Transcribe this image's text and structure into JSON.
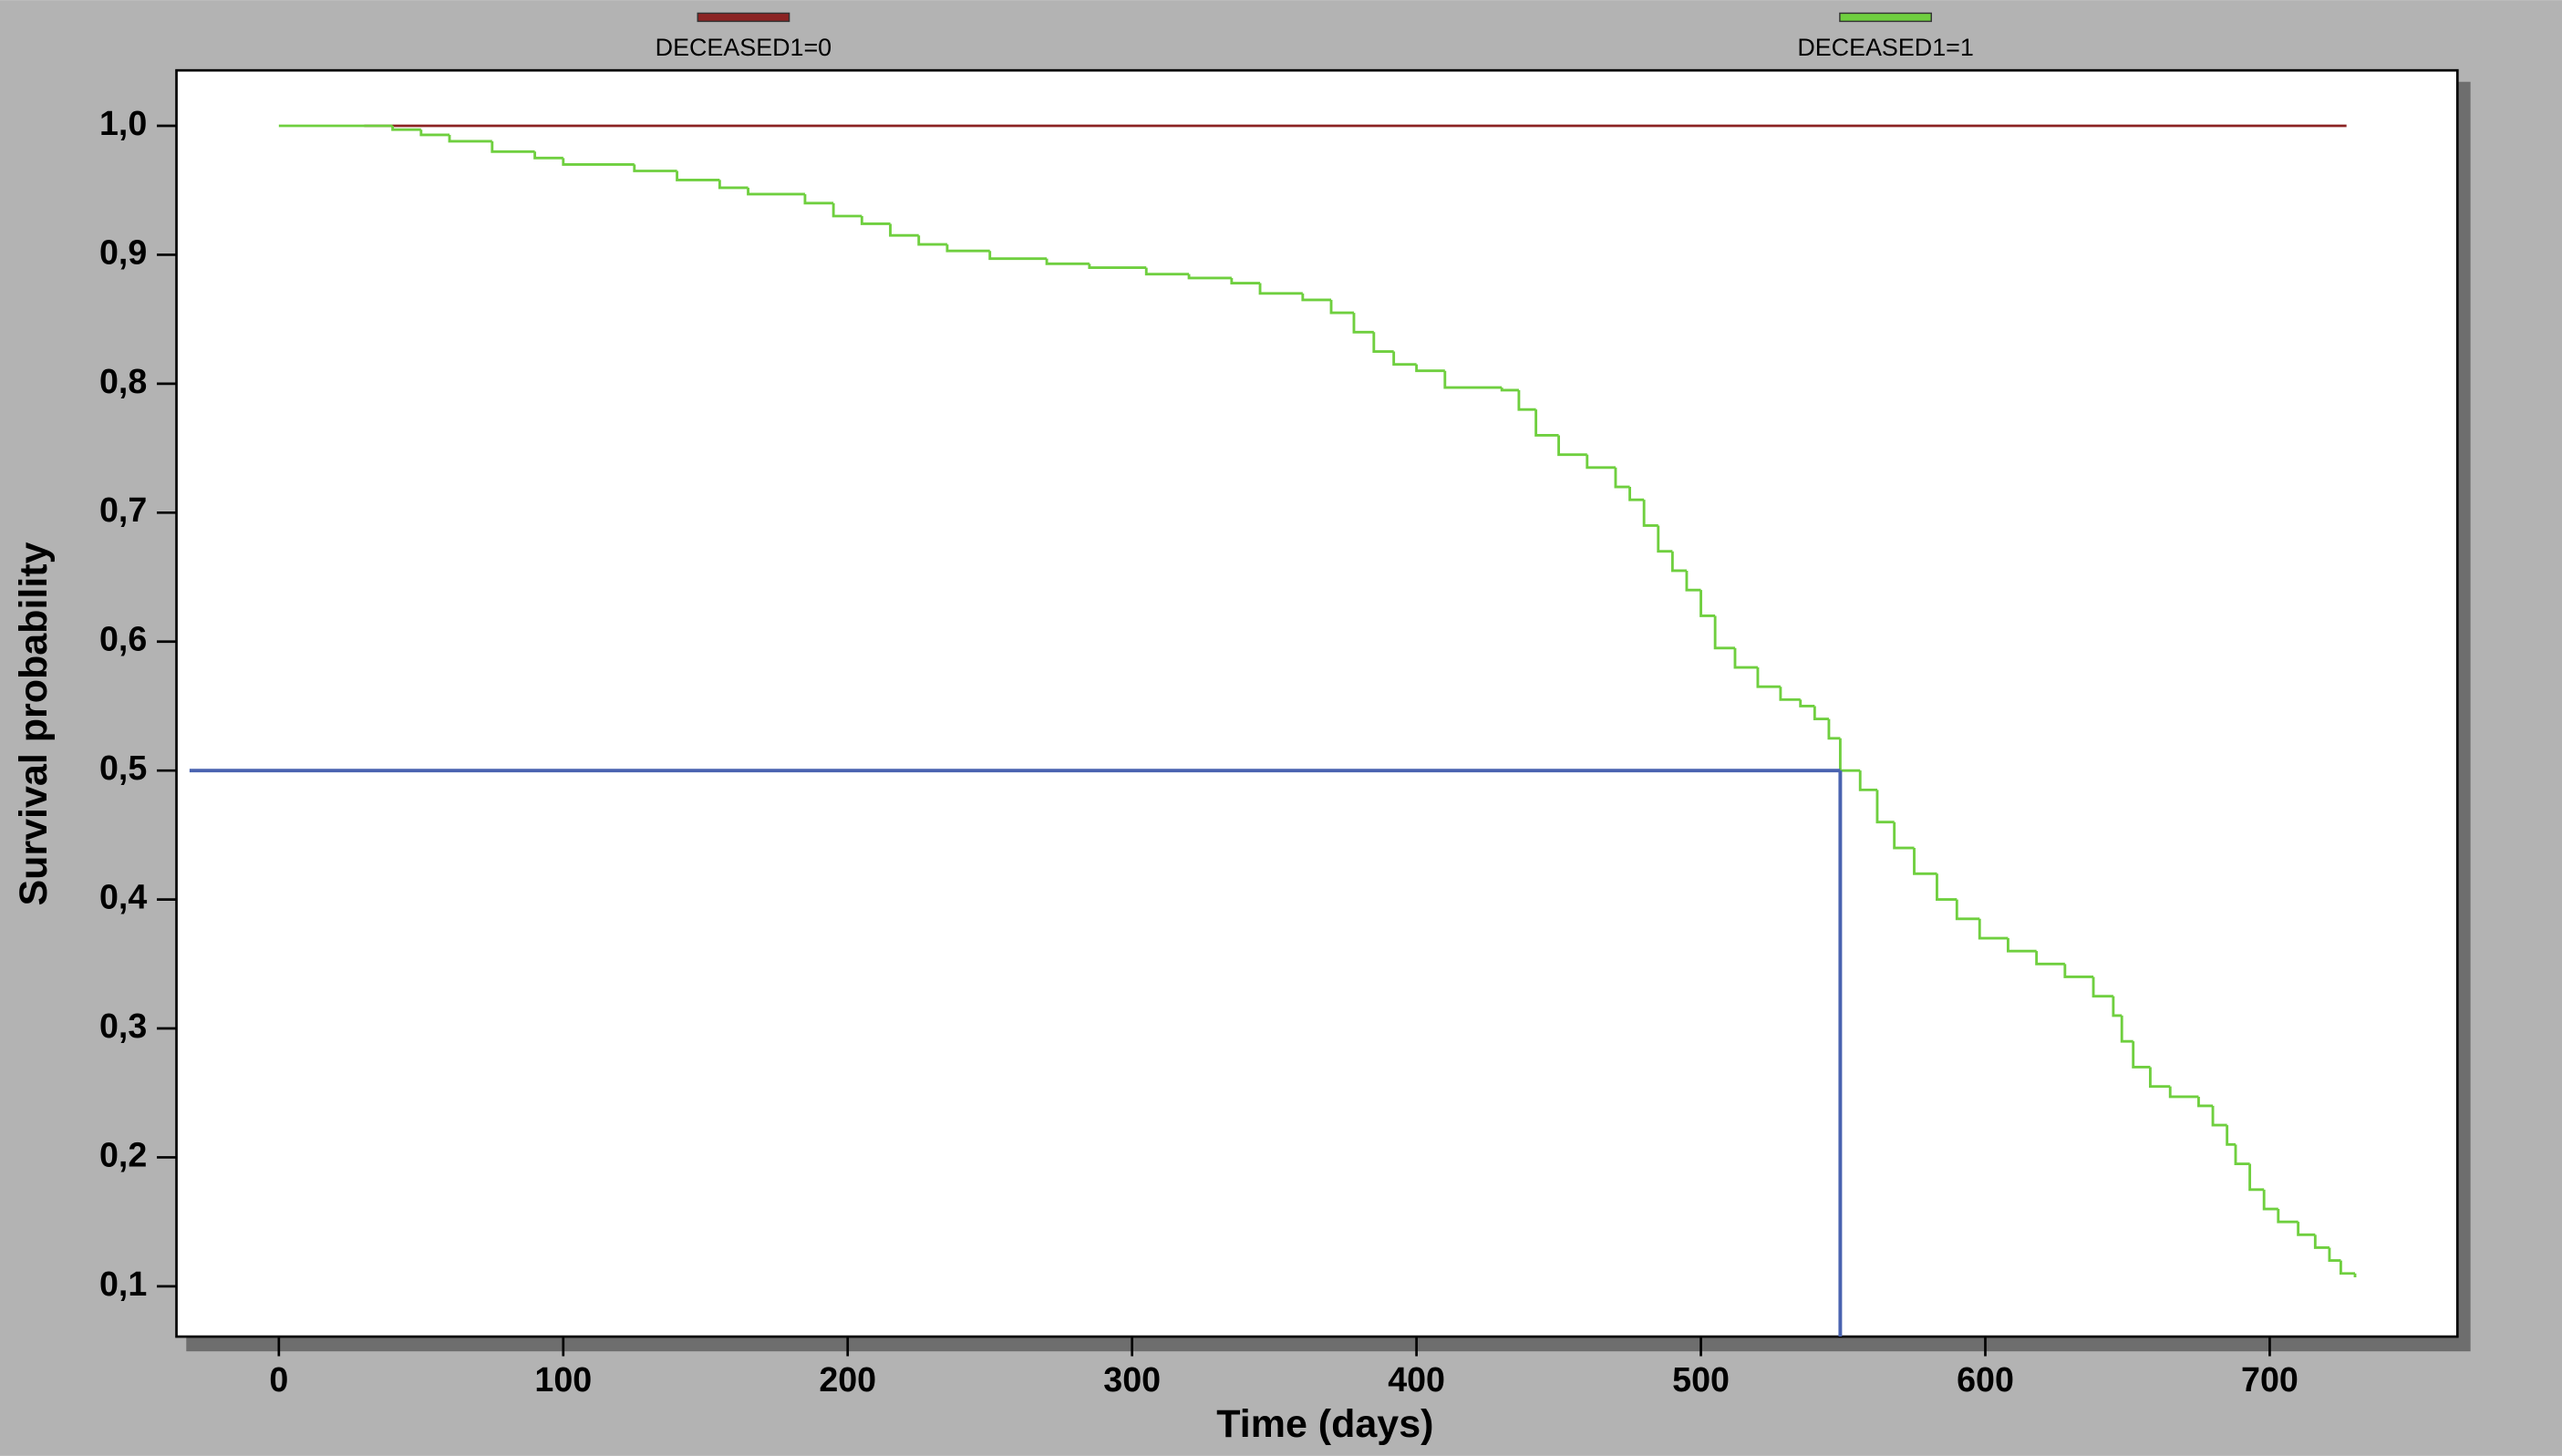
{
  "chart_data": {
    "type": "step",
    "xlabel": "Time (days)",
    "ylabel": "Survival probability",
    "xlim": [
      -36,
      766
    ],
    "ylim": [
      0.061,
      1.043
    ],
    "xticks": [
      0,
      100,
      200,
      300,
      400,
      500,
      600,
      700
    ],
    "yticks": [
      {
        "value": 0.1,
        "label": "0,1"
      },
      {
        "value": 0.2,
        "label": "0,2"
      },
      {
        "value": 0.3,
        "label": "0,3"
      },
      {
        "value": 0.4,
        "label": "0,4"
      },
      {
        "value": 0.5,
        "label": "0,5"
      },
      {
        "value": 0.6,
        "label": "0,6"
      },
      {
        "value": 0.7,
        "label": "0,7"
      },
      {
        "value": 0.8,
        "label": "0,8"
      },
      {
        "value": 0.9,
        "label": "0,9"
      },
      {
        "value": 1.0,
        "label": "1,0"
      }
    ],
    "series": [
      {
        "name": "DECEASED1=0",
        "color": "#8b2323",
        "x": [
          30,
          727
        ],
        "values": [
          1.0,
          1.0
        ]
      },
      {
        "name": "DECEASED1=1",
        "color": "#6fcf3f",
        "x": [
          0,
          40,
          50,
          60,
          75,
          90,
          100,
          125,
          140,
          155,
          165,
          185,
          195,
          205,
          215,
          225,
          235,
          250,
          270,
          285,
          305,
          320,
          335,
          345,
          360,
          370,
          378,
          385,
          392,
          400,
          410,
          430,
          436,
          442,
          450,
          460,
          470,
          475,
          480,
          485,
          490,
          495,
          500,
          505,
          512,
          520,
          528,
          535,
          540,
          545,
          549,
          556,
          562,
          568,
          575,
          583,
          590,
          598,
          608,
          618,
          628,
          638,
          645,
          648,
          652,
          658,
          665,
          675,
          680,
          685,
          688,
          693,
          698,
          703,
          710,
          716,
          721,
          725,
          730
        ],
        "values": [
          1.0,
          0.997,
          0.993,
          0.988,
          0.98,
          0.975,
          0.97,
          0.965,
          0.958,
          0.952,
          0.947,
          0.94,
          0.93,
          0.924,
          0.915,
          0.908,
          0.903,
          0.897,
          0.893,
          0.89,
          0.885,
          0.882,
          0.878,
          0.87,
          0.865,
          0.855,
          0.84,
          0.825,
          0.815,
          0.81,
          0.797,
          0.795,
          0.78,
          0.76,
          0.745,
          0.735,
          0.72,
          0.71,
          0.69,
          0.67,
          0.655,
          0.64,
          0.62,
          0.595,
          0.58,
          0.565,
          0.555,
          0.55,
          0.54,
          0.525,
          0.5,
          0.485,
          0.46,
          0.44,
          0.42,
          0.4,
          0.385,
          0.37,
          0.36,
          0.35,
          0.34,
          0.325,
          0.31,
          0.29,
          0.27,
          0.255,
          0.247,
          0.24,
          0.225,
          0.21,
          0.195,
          0.175,
          0.16,
          0.15,
          0.14,
          0.13,
          0.12,
          0.11,
          0.107
        ]
      }
    ],
    "median": {
      "x": 549,
      "y": 0.5,
      "color": "#4a63b0"
    },
    "legend": "top"
  }
}
